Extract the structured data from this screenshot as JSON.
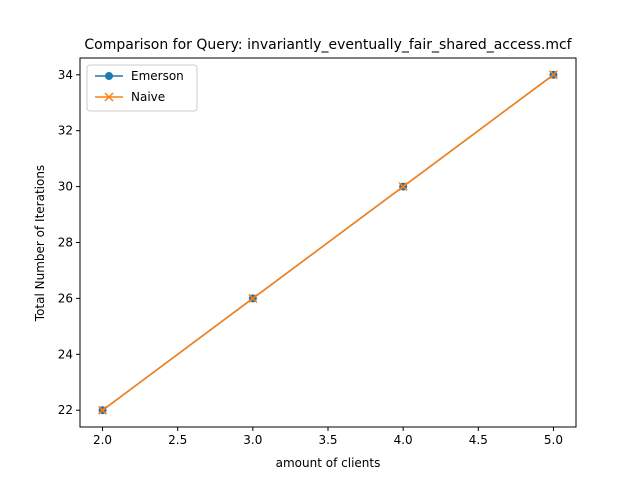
{
  "chart_data": {
    "type": "line",
    "title": "Comparison for Query: invariantly_eventually_fair_shared_access.mcf",
    "xlabel": "amount of clients",
    "ylabel": "Total Number of Iterations",
    "xlim": [
      1.85,
      5.15
    ],
    "ylim": [
      21.4,
      34.6
    ],
    "xticks": [
      2.0,
      2.5,
      3.0,
      3.5,
      4.0,
      4.5,
      5.0
    ],
    "xtick_labels": [
      "2.0",
      "2.5",
      "3.0",
      "3.5",
      "4.0",
      "4.5",
      "5.0"
    ],
    "yticks": [
      22,
      24,
      26,
      28,
      30,
      32,
      34
    ],
    "ytick_labels": [
      "22",
      "24",
      "26",
      "28",
      "30",
      "32",
      "34"
    ],
    "grid": false,
    "legend_position": "top-left",
    "series": [
      {
        "name": "Emerson",
        "marker": "circle",
        "color": "#1f77b4",
        "x": [
          2,
          3,
          4,
          5
        ],
        "y": [
          22,
          26,
          30,
          34
        ]
      },
      {
        "name": "Naive",
        "marker": "x",
        "color": "#ff7f0e",
        "x": [
          2,
          3,
          4,
          5
        ],
        "y": [
          22,
          26,
          30,
          34
        ]
      }
    ]
  }
}
